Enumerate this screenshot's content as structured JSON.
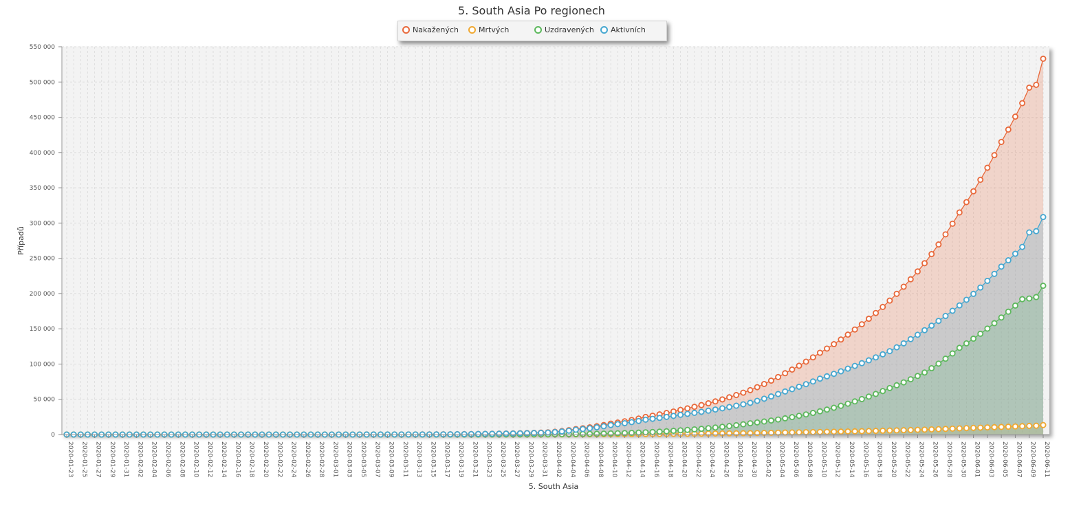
{
  "chart_data": {
    "type": "area",
    "title": "5. South Asia Po regionech",
    "xlabel": "5. South Asia",
    "ylabel": "Případů",
    "ylim": [
      0,
      550000
    ],
    "y_ticks": [
      0,
      50000,
      100000,
      150000,
      200000,
      250000,
      300000,
      350000,
      400000,
      450000,
      500000,
      550000
    ],
    "y_tick_labels": [
      "0",
      "50 000",
      "100 000",
      "150 000",
      "200 000",
      "250 000",
      "300 000",
      "350 000",
      "400 000",
      "450 000",
      "500 000",
      "550 000"
    ],
    "x_start": "2020-01-23",
    "x_end": "2020-06-11",
    "x_label_step_days": 2,
    "grid": true,
    "legend_position": "top-center",
    "x": [
      "2020-01-23",
      "2020-03-01",
      "2020-03-15",
      "2020-03-22",
      "2020-03-29",
      "2020-04-01",
      "2020-04-05",
      "2020-04-10",
      "2020-04-15",
      "2020-04-20",
      "2020-04-25",
      "2020-04-30",
      "2020-05-05",
      "2020-05-10",
      "2020-05-15",
      "2020-05-20",
      "2020-05-25",
      "2020-05-30",
      "2020-06-01",
      "2020-06-05",
      "2020-06-08",
      "2020-06-09",
      "2020-06-10",
      "2020-06-11"
    ],
    "series": [
      {
        "name": "Nakažených",
        "color": "#e8683a",
        "values": [
          0,
          0,
          200,
          900,
          2200,
          3200,
          7800,
          15500,
          25000,
          35000,
          47000,
          63000,
          87000,
          116000,
          149000,
          190000,
          243000,
          315000,
          345000,
          415000,
          470000,
          492000,
          496000,
          533000
        ]
      },
      {
        "name": "Mrtvých",
        "color": "#f0a830",
        "values": [
          0,
          0,
          5,
          20,
          50,
          80,
          200,
          400,
          700,
          1000,
          1500,
          2000,
          2900,
          3700,
          4600,
          5700,
          7000,
          8800,
          9500,
          10800,
          11900,
          12300,
          12500,
          13500
        ]
      },
      {
        "name": "Uzdravených",
        "color": "#5cb85c",
        "values": [
          0,
          0,
          15,
          70,
          200,
          300,
          700,
          1600,
          3200,
          6000,
          10000,
          16000,
          23000,
          33000,
          47000,
          66000,
          88000,
          123000,
          136000,
          166000,
          192000,
          193000,
          195000,
          211000
        ]
      },
      {
        "name": "Aktivních",
        "color": "#45a7d0",
        "values": [
          0,
          0,
          180,
          810,
          1950,
          2820,
          6900,
          13500,
          21100,
          28000,
          35500,
          45000,
          61100,
          79300,
          97400,
          118300,
          148000,
          183200,
          199500,
          238200,
          266100,
          286700,
          288500,
          308500
        ]
      }
    ]
  }
}
